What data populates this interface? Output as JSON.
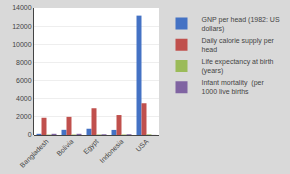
{
  "chart_data": {
    "type": "bar",
    "categories": [
      "Bangladesh",
      "Bolivia",
      "Egypt",
      "Indonesia",
      "USA"
    ],
    "series": [
      {
        "name": "GNP per head (1982: US\ndollars)",
        "color": "#4472C4",
        "values": [
          130,
          570,
          690,
          560,
          13160
        ]
      },
      {
        "name": "Daily calorie supply per\nhead",
        "color": "#C0504D",
        "values": [
          1900,
          2000,
          2950,
          2200,
          3500
        ]
      },
      {
        "name": "Life expectancy at birth\n(years)",
        "color": "#9BBB59",
        "values": [
          49,
          53,
          57,
          55,
          75
        ]
      },
      {
        "name": "Infant mortality  (per\n1000 live births",
        "color": "#8064A2",
        "values": [
          132,
          131,
          82,
          87,
          12
        ]
      }
    ],
    "ylim": [
      0,
      14000
    ],
    "yticks": [
      0,
      2000,
      4000,
      6000,
      8000,
      10000,
      12000,
      14000
    ],
    "grid": true,
    "legend": "right"
  }
}
